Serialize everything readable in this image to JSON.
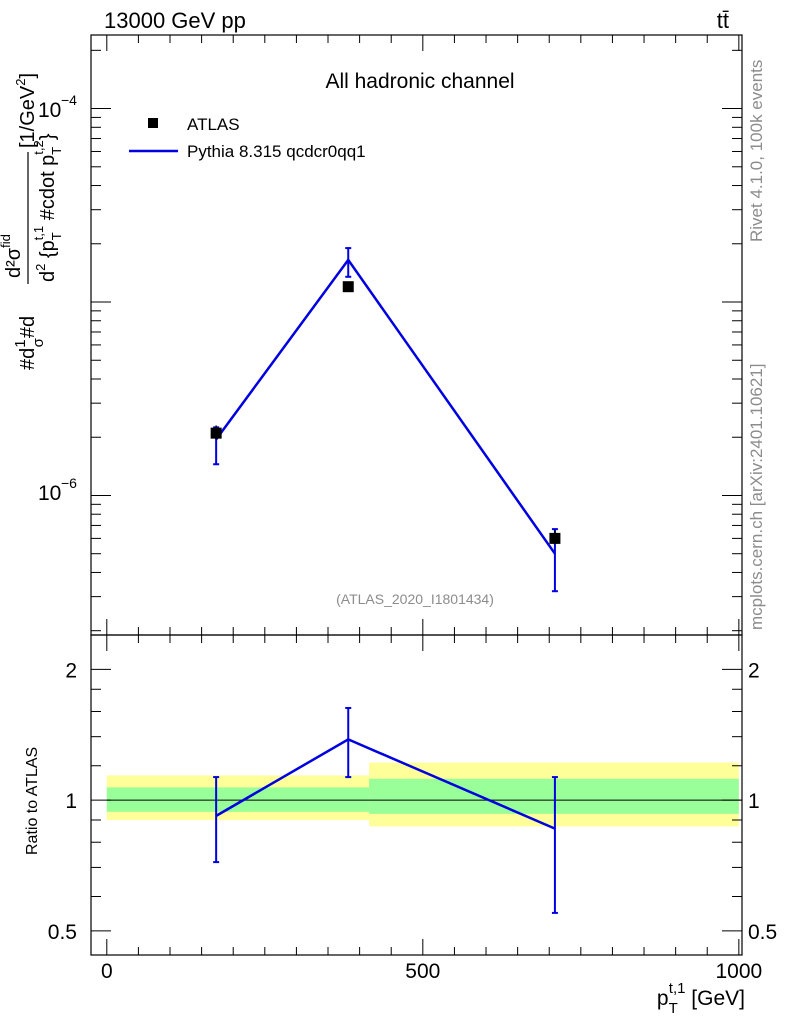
{
  "header": {
    "energy_label": "13000 GeV pp",
    "process_label": "tt̄"
  },
  "side_labels": {
    "rivet": "Rivet 4.1.0,  100k events",
    "mcplots": "mcplots.cern.ch [arXiv:2401.10621]"
  },
  "colors": {
    "mc_line": "#0000e0",
    "data_marker": "#000000",
    "band_inner": "#99ff99",
    "band_outer": "#ffff99",
    "watermark": "#8c8c8c"
  },
  "chart_data": [
    {
      "type": "scatter",
      "title": "All hadronic channel",
      "analysis_id": "(ATLAS_2020_I1801434)",
      "ylabel": "#d¹⁄σ #d d²σᶜᶦᵈ / d²{p_T^t,1 #cdot p_T^t,2} [1/GeV²]",
      "ylabel_parts": {
        "prefix": "#d",
        "frac_num": "1",
        "frac_den": "σ",
        "mid": "#d",
        "big_num": "d²σ",
        "big_num_sup": "fid",
        "den_a": "d",
        "den_a_sup": "2",
        "den_b": " {p",
        "den_b_sub": "T",
        "den_b_sup": "t,1",
        "den_c": " #cdot p",
        "den_c_sub": "T",
        "den_c_sup": "t,2",
        "den_d": "}",
        "unit": " [1/GeV",
        "unit_sup": "2",
        "unit_end": "]"
      },
      "yscale": "log",
      "ylim": [
        1.9e-07,
        0.00024
      ],
      "ytick_labels": [
        "10",
        "10"
      ],
      "ytick_exponents": [
        "−4",
        "−6"
      ],
      "ytick_major_values": [
        0.0001,
        1e-05,
        1e-06
      ],
      "xlim": [
        -25,
        1005
      ],
      "legend_position": "top-left",
      "series": [
        {
          "name": "ATLAS",
          "kind": "data",
          "x": [
            173,
            382,
            709
          ],
          "y": [
            2.1e-06,
            1.2e-05,
            6e-07
          ],
          "yerr_up": [
            2.3e-06,
            1.25e-05,
            6.6e-07
          ],
          "yerr_down": [
            1.95e-06,
            1.15e-05,
            5.6e-07
          ]
        },
        {
          "name": "Pythia 8.315 qcdcr0qq1",
          "kind": "mc",
          "x": [
            173,
            382,
            709
          ],
          "y": [
            1.95e-06,
            1.65e-05,
            5e-07
          ],
          "yerr_up": [
            2.25e-06,
            1.9e-05,
            6.7e-07
          ],
          "yerr_down": [
            1.45e-06,
            1.35e-05,
            3.2e-07
          ]
        }
      ]
    },
    {
      "type": "line",
      "ylabel": "Ratio to ATLAS",
      "xlabel": "p_T^t,1 [GeV]",
      "xlabel_parts": {
        "base": "p",
        "sub": "T",
        "sup": "t,1",
        "unit": " [GeV]"
      },
      "xlim": [
        -25,
        1005
      ],
      "ylim": [
        0.44,
        2.4
      ],
      "yscale": "log",
      "ytick_labels": [
        "2",
        "1",
        "0.5"
      ],
      "ytick_values": [
        2,
        1,
        0.5
      ],
      "xtick_labels": [
        "0",
        "500",
        "1000"
      ],
      "xtick_values": [
        0,
        500,
        1000
      ],
      "reference_line": 1,
      "bands": [
        {
          "x_range": [
            0,
            415
          ],
          "inner": [
            0.94,
            1.07
          ],
          "outer": [
            0.9,
            1.14
          ]
        },
        {
          "x_range": [
            415,
            1000
          ],
          "inner": [
            0.93,
            1.12
          ],
          "outer": [
            0.87,
            1.22
          ]
        }
      ],
      "series": [
        {
          "name": "Pythia 8.315 qcdcr0qq1",
          "x": [
            173,
            382,
            709
          ],
          "y": [
            0.92,
            1.38,
            0.86
          ],
          "yerr_up": [
            1.13,
            1.63,
            1.13
          ],
          "yerr_down": [
            0.72,
            1.13,
            0.55
          ]
        }
      ]
    }
  ]
}
